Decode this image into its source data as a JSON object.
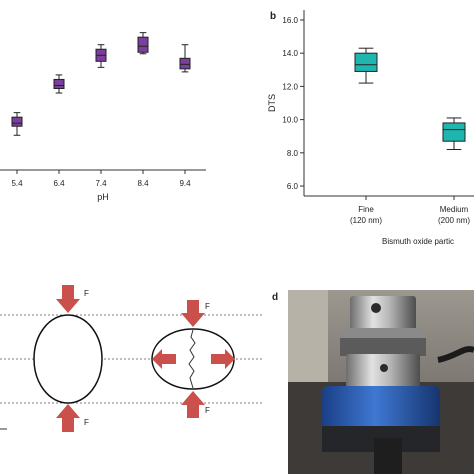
{
  "panels": {
    "a": {
      "label": ""
    },
    "b": {
      "label": "b"
    },
    "c": {
      "label": ""
    },
    "d": {
      "label": "d"
    }
  },
  "colors": {
    "purple": "#7b3f9e",
    "teal": "#1fb6b0",
    "arrow": "#c9504b"
  },
  "chart_data": [
    {
      "type": "box",
      "title": "",
      "xlabel": "pH",
      "ylabel": "",
      "categories": [
        "5.4",
        "6.4",
        "7.4",
        "8.4",
        "9.4"
      ],
      "series": [
        {
          "values": [
            {
              "min": 8.3,
              "q1": 8.9,
              "median": 9.1,
              "q3": 9.5,
              "max": 9.8
            },
            {
              "min": 11.1,
              "q1": 11.4,
              "median": 11.6,
              "q3": 12.0,
              "max": 12.3
            },
            {
              "min": 12.8,
              "q1": 13.2,
              "median": 13.6,
              "q3": 14.0,
              "max": 14.3
            },
            {
              "min": 13.7,
              "q1": 13.8,
              "median": 14.2,
              "q3": 14.8,
              "max": 15.1
            },
            {
              "min": 12.5,
              "q1": 12.7,
              "median": 13.0,
              "q3": 13.4,
              "max": 14.3
            }
          ]
        }
      ],
      "ylim": [
        6.0,
        16.6
      ]
    },
    {
      "type": "box",
      "title": "",
      "xlabel": "Bismuth oxide partic",
      "ylabel": "DTS",
      "categories": [
        "Fine\n(120 nm)",
        "Medium\n(200 nm)"
      ],
      "category_lines": [
        [
          "Fine",
          "(120 nm)"
        ],
        [
          "Medium",
          "(200 nm)"
        ]
      ],
      "yticks": [
        "6.0",
        "8.0",
        "10.0",
        "12.0",
        "14.0",
        "16.0"
      ],
      "series": [
        {
          "values": [
            {
              "min": 12.2,
              "q1": 12.9,
              "median": 13.3,
              "q3": 14.0,
              "max": 14.3
            },
            {
              "min": 8.2,
              "q1": 8.7,
              "median": 9.4,
              "q3": 9.8,
              "max": 10.1
            }
          ]
        }
      ],
      "ylim": [
        5.4,
        16.6
      ]
    }
  ],
  "diagram": {
    "force_label": "F"
  }
}
